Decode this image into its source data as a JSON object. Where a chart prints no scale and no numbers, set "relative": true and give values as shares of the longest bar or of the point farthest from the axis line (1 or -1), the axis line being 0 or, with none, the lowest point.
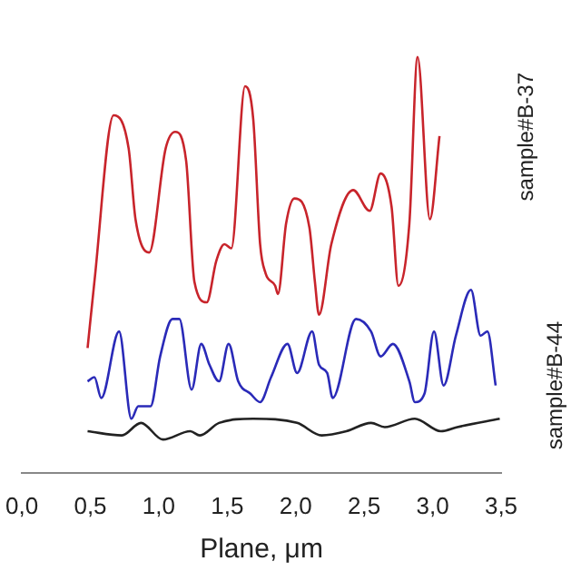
{
  "chart_data": {
    "type": "line",
    "relative": true,
    "xlabel": "Plane, μm",
    "xlim": [
      0,
      3.5
    ],
    "xticks": [
      {
        "value": 0,
        "label": "0,0"
      },
      {
        "value": 0.5,
        "label": "0,5"
      },
      {
        "value": 1,
        "label": "1,0"
      },
      {
        "value": 1.5,
        "label": "1,5"
      },
      {
        "value": 2,
        "label": "2,0"
      },
      {
        "value": 2.5,
        "label": "2,5"
      },
      {
        "value": 3,
        "label": "3,0"
      },
      {
        "value": 3.5,
        "label": "3,5"
      }
    ],
    "grid": false,
    "legend": false,
    "marker": "none",
    "line_style": "solid",
    "series": [
      {
        "name": "sample#B-37",
        "color": "#c8242b",
        "x": [
          0.48,
          0.53,
          0.67,
          0.78,
          0.83,
          0.93,
          1.05,
          1.12,
          1.2,
          1.26,
          1.35,
          1.42,
          1.48,
          1.53,
          1.63,
          1.69,
          1.74,
          1.78,
          1.85,
          1.87,
          1.93,
          1.99,
          2.1,
          2.14,
          2.17,
          2.26,
          2.42,
          2.54,
          2.62,
          2.7,
          2.75,
          2.83,
          2.89,
          2.98,
          3.05
        ],
        "values": [
          0.3,
          0.46,
          0.86,
          0.78,
          0.61,
          0.53,
          0.78,
          0.82,
          0.75,
          0.46,
          0.41,
          0.51,
          0.55,
          0.54,
          0.93,
          0.85,
          0.55,
          0.48,
          0.45,
          0.43,
          0.6,
          0.66,
          0.59,
          0.46,
          0.38,
          0.55,
          0.68,
          0.63,
          0.72,
          0.64,
          0.45,
          0.6,
          1.0,
          0.61,
          0.81
        ]
      },
      {
        "name": "sample#B-44",
        "color": "#2a2ab8",
        "x": [
          0.48,
          0.53,
          0.58,
          0.71,
          0.8,
          0.85,
          0.94,
          1.01,
          1.1,
          1.15,
          1.24,
          1.31,
          1.37,
          1.44,
          1.51,
          1.58,
          1.67,
          1.74,
          1.82,
          1.94,
          2.01,
          2.12,
          2.17,
          2.23,
          2.27,
          2.44,
          2.55,
          2.62,
          2.71,
          2.83,
          2.87,
          2.94,
          3.01,
          3.08,
          3.17,
          3.28,
          3.35,
          3.4,
          3.46
        ],
        "values": [
          0.22,
          0.23,
          0.18,
          0.34,
          0.13,
          0.16,
          0.16,
          0.28,
          0.37,
          0.37,
          0.2,
          0.31,
          0.26,
          0.22,
          0.31,
          0.22,
          0.19,
          0.17,
          0.23,
          0.31,
          0.24,
          0.34,
          0.26,
          0.24,
          0.18,
          0.37,
          0.34,
          0.28,
          0.31,
          0.22,
          0.17,
          0.19,
          0.34,
          0.21,
          0.33,
          0.44,
          0.33,
          0.34,
          0.21
        ]
      },
      {
        "color": "#222222",
        "x": [
          0.48,
          0.73,
          0.87,
          1.03,
          1.23,
          1.3,
          1.44,
          1.69,
          2.01,
          2.19,
          2.37,
          2.55,
          2.65,
          2.87,
          3.06,
          3.18,
          3.49
        ],
        "values": [
          0.1,
          0.09,
          0.12,
          0.08,
          0.1,
          0.09,
          0.12,
          0.13,
          0.12,
          0.09,
          0.1,
          0.12,
          0.11,
          0.13,
          0.1,
          0.11,
          0.13
        ]
      }
    ]
  }
}
